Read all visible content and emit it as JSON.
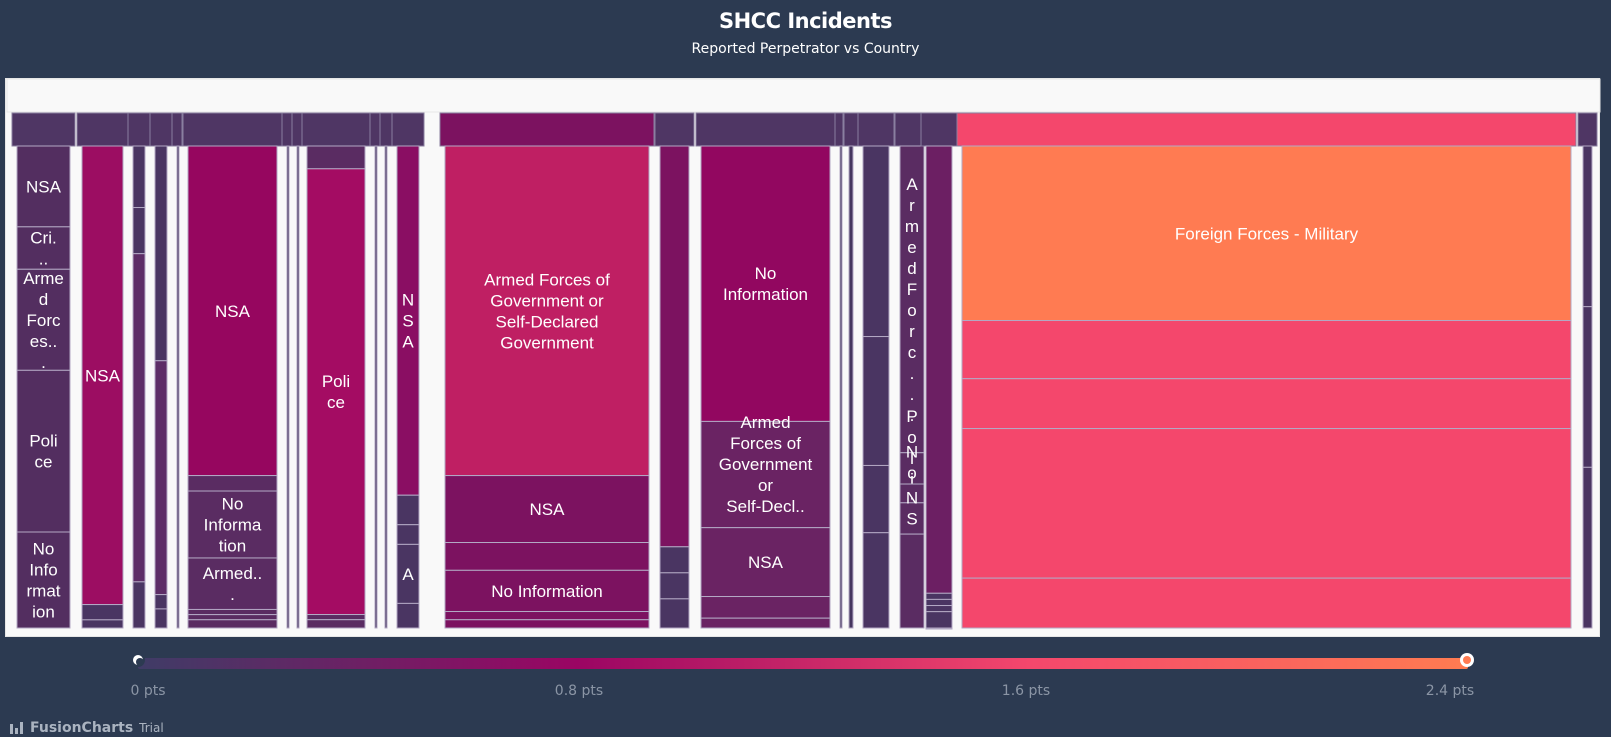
{
  "header": {
    "title": "SHCC Incidents",
    "subtitle": "Reported Perpetrator vs Country"
  },
  "legend": {
    "ticks": [
      "0 pts",
      "0.8 pts",
      "1.6 pts",
      "2.4 pts"
    ],
    "gradient_colors": [
      "#3f3c66",
      "#9a0563",
      "#f4476c",
      "#ff7c51"
    ],
    "range": [
      0,
      2.4
    ]
  },
  "branding": {
    "name": "FusionCharts",
    "suffix": "Trial"
  },
  "chart_data": {
    "type": "treemap",
    "title": "SHCC Incidents",
    "subtitle": "Reported Perpetrator vs Country",
    "color_scale": {
      "min": 0,
      "max": 2.4,
      "unit": "pts"
    },
    "groups": [
      {
        "children": [
          {
            "label": "NSA",
            "value": 0.45,
            "color": "#532e60"
          },
          {
            "label": "Cri...",
            "value": 0.2,
            "color": "#532e60"
          },
          {
            "label": "Armed Forces...",
            "value": 0.55,
            "color": "#532e60"
          },
          {
            "label": "Police",
            "value": 0.9,
            "color": "#532e60"
          },
          {
            "label": "No Information",
            "value": 0.5,
            "color": "#532e60"
          }
        ]
      },
      {
        "children": [
          {
            "label": "NSA",
            "value": 1.2,
            "color": "#9c0d62"
          },
          {
            "label": "",
            "value": 0.05,
            "color": "#4a3562"
          },
          {
            "label": "",
            "value": 0.03,
            "color": "#4a3562"
          }
        ]
      },
      {
        "children": [
          {
            "label": "",
            "value": 0.05,
            "color": "#4a3562"
          },
          {
            "label": "",
            "value": 0.04,
            "color": "#4a3562"
          },
          {
            "label": "",
            "value": 0.4,
            "color": "#5d2d66"
          },
          {
            "label": "",
            "value": 0.05,
            "color": "#4a3562"
          }
        ]
      },
      {
        "children": [
          {
            "label": "",
            "value": 0.2,
            "color": "#4a3562"
          },
          {
            "label": "",
            "value": 0.25,
            "color": "#5d2d66"
          },
          {
            "label": "",
            "value": 0.03,
            "color": "#4a3562"
          },
          {
            "label": "",
            "value": 0.03,
            "color": "#4a3562"
          }
        ]
      },
      {
        "children": [
          {
            "label": "",
            "value": 0.2,
            "color": "#45365f"
          }
        ]
      },
      {
        "children": [
          {
            "label": "NSA",
            "value": 1.4,
            "color": "#96065f"
          },
          {
            "label": "",
            "value": 0.05,
            "color": "#5a2c62"
          },
          {
            "label": "No Information",
            "value": 0.3,
            "color": "#5a2c62"
          },
          {
            "label": "Armed...",
            "value": 0.2,
            "color": "#5a2c62"
          },
          {
            "label": "",
            "value": 0.02,
            "color": "#5a2c62"
          },
          {
            "label": "",
            "value": 0.02,
            "color": "#5a2c62"
          },
          {
            "label": "",
            "value": 0.02,
            "color": "#5a2c62"
          }
        ]
      },
      {
        "children": [
          {
            "label": "",
            "value": 0.2,
            "color": "#45365f"
          }
        ]
      },
      {
        "children": [
          {
            "label": "",
            "value": 0.2,
            "color": "#45365f"
          }
        ]
      },
      {
        "children": [
          {
            "label": "",
            "value": 0.04,
            "color": "#5a2c62"
          },
          {
            "label": "Police",
            "value": 1.1,
            "color": "#a40c63"
          },
          {
            "label": "",
            "value": 0.02,
            "color": "#5a2c62"
          },
          {
            "label": "",
            "value": 0.02,
            "color": "#5a2c62"
          }
        ]
      },
      {
        "children": [
          {
            "label": "",
            "value": 0.2,
            "color": "#45365f"
          }
        ]
      },
      {
        "children": [
          {
            "label": "",
            "value": 0.2,
            "color": "#45365f"
          }
        ]
      },
      {
        "children": [
          {
            "label": "NSA",
            "value": 1.1,
            "color": "#8a0e63"
          },
          {
            "label": "",
            "value": 0.06,
            "color": "#4a3562"
          },
          {
            "label": "",
            "value": 0.04,
            "color": "#4a3562"
          },
          {
            "label": "A",
            "value": 0.12,
            "color": "#4a3562"
          },
          {
            "label": "",
            "value": 0.05,
            "color": "#4a3562"
          }
        ]
      },
      {
        "children": [
          {
            "label": "",
            "value": 0.2,
            "color": "#45365f"
          }
        ]
      },
      {
        "children": [
          {
            "label": "",
            "value": 0.2,
            "color": "#45365f"
          }
        ]
      },
      {
        "children": [
          {
            "label": "Armed Forces of Government or Self-Declared Government",
            "value": 1.7,
            "color": "#bf1f63"
          },
          {
            "label": "NSA",
            "value": 0.9,
            "color": "#7c1260"
          },
          {
            "label": "",
            "value": 0.8,
            "color": "#7c1260"
          },
          {
            "label": "No Information",
            "value": 0.9,
            "color": "#7c1260"
          },
          {
            "label": "",
            "value": 0.7,
            "color": "#7c1260"
          },
          {
            "label": "",
            "value": 0.7,
            "color": "#7c1260"
          }
        ]
      },
      {
        "children": [
          {
            "label": "",
            "value": 0.9,
            "color": "#7c1260"
          },
          {
            "label": "",
            "value": 0.1,
            "color": "#4a3562"
          },
          {
            "label": "",
            "value": 0.08,
            "color": "#4a3562"
          },
          {
            "label": "",
            "value": 0.1,
            "color": "#4a3562"
          }
        ]
      },
      {
        "children": [
          {
            "label": "No Information",
            "value": 1.5,
            "color": "#920760"
          },
          {
            "label": "Armed Forces of Government or Self-Decl...",
            "value": 0.7,
            "color": "#6a2363"
          },
          {
            "label": "NSA",
            "value": 0.5,
            "color": "#6a2363"
          },
          {
            "label": "",
            "value": 0.4,
            "color": "#6a2363"
          },
          {
            "label": "",
            "value": 0.4,
            "color": "#6a2363"
          }
        ]
      },
      {
        "children": [
          {
            "label": "",
            "value": 0.2,
            "color": "#45365f"
          }
        ]
      },
      {
        "children": [
          {
            "label": "",
            "value": 0.2,
            "color": "#45365f"
          }
        ]
      },
      {
        "children": [
          {
            "label": "",
            "value": 0.1,
            "color": "#4a3562"
          },
          {
            "label": "",
            "value": 0.3,
            "color": "#4a3562"
          },
          {
            "label": "",
            "value": 0.2,
            "color": "#4a3562"
          },
          {
            "label": "",
            "value": 0.1,
            "color": "#4a3562"
          }
        ]
      },
      {
        "children": [
          {
            "label": "Armed Forc...",
            "value": 0.75,
            "color": "#5a2c62"
          },
          {
            "label": "Police",
            "value": 0.65,
            "color": "#5a2c62"
          },
          {
            "label": "No...",
            "value": 0.35,
            "color": "#5a2c62"
          },
          {
            "label": "NSA",
            "value": 0.5,
            "color": "#5a2c62"
          },
          {
            "label": "",
            "value": 0.2,
            "color": "#5a2c62"
          }
        ]
      },
      {
        "children": [
          {
            "label": "",
            "value": 0.8,
            "color": "#6c1f63"
          },
          {
            "label": "",
            "value": 0.1,
            "color": "#4a3562"
          },
          {
            "label": "",
            "value": 0.1,
            "color": "#4a3562"
          },
          {
            "label": "",
            "value": 0.1,
            "color": "#4a3562"
          },
          {
            "label": "",
            "value": 0.1,
            "color": "#4a3562"
          },
          {
            "label": "",
            "value": 0.1,
            "color": "#4a3562"
          }
        ]
      },
      {
        "children": [
          {
            "label": "Foreign Forces - Military",
            "value": 2.4,
            "color": "#ff7b52"
          },
          {
            "label": "",
            "value": 1.9,
            "color": "#f4476c"
          },
          {
            "label": "",
            "value": 1.9,
            "color": "#f4476c"
          },
          {
            "label": "",
            "value": 1.9,
            "color": "#f4476c"
          },
          {
            "label": "",
            "value": 1.9,
            "color": "#f4476c"
          }
        ]
      },
      {
        "children": [
          {
            "label": "",
            "value": 0.2,
            "color": "#4a3562"
          },
          {
            "label": "",
            "value": 0.2,
            "color": "#4a3562"
          },
          {
            "label": "",
            "value": 0.2,
            "color": "#4a3562"
          }
        ]
      }
    ]
  }
}
